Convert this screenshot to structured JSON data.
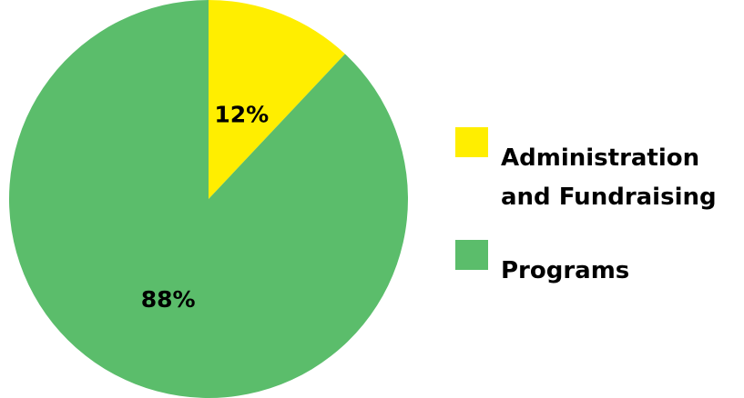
{
  "chart_data": {
    "type": "pie",
    "title": "",
    "slices": [
      {
        "label": "Administration and Fundraising",
        "value": 12,
        "display": "12%",
        "color": "#ffee00"
      },
      {
        "label": "Programs",
        "value": 88,
        "display": "88%",
        "color": "#5bbd6b"
      }
    ],
    "legend_position": "right"
  }
}
